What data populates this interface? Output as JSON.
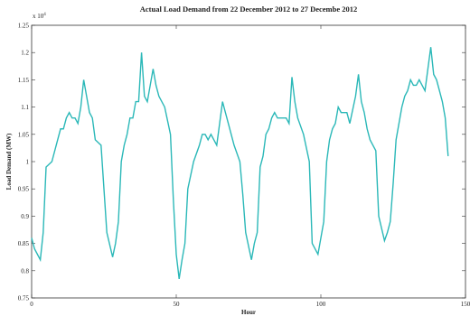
{
  "chart_data": {
    "type": "line",
    "title": "Actual Load Demand from 22 December 2012 to 27 Decembe 2012",
    "x_label": "Hour",
    "y_label": "Load Demand (MW)",
    "y_multiplier": "x 10",
    "y_multiplier_exponent": "4",
    "xlim": [
      0,
      150
    ],
    "xticks": [
      0,
      50,
      100,
      150
    ],
    "ylim": [
      0.75,
      1.25
    ],
    "yticks": [
      0.75,
      0.8,
      0.85,
      0.9,
      0.95,
      1,
      1.05,
      1.1,
      1.15,
      1.2,
      1.25
    ],
    "x": [
      0,
      1,
      3,
      4,
      5,
      7,
      9,
      10,
      11,
      12,
      13,
      14,
      15,
      16,
      17,
      18,
      19,
      20,
      21,
      22,
      24,
      25,
      26,
      28,
      29,
      30,
      31,
      32,
      33,
      34,
      35,
      36,
      37,
      38,
      39,
      40,
      41,
      42,
      43,
      44,
      46,
      48,
      49,
      50,
      51,
      52,
      53,
      54,
      56,
      58,
      59,
      60,
      61,
      62,
      63,
      64,
      65,
      66,
      67,
      68,
      70,
      72,
      73,
      74,
      76,
      77,
      78,
      79,
      80,
      81,
      82,
      83,
      84,
      85,
      86,
      88,
      89,
      90,
      91,
      92,
      94,
      96,
      97,
      99,
      100,
      101,
      102,
      103,
      104,
      105,
      106,
      107,
      108,
      109,
      110,
      112,
      113,
      114,
      115,
      116,
      117,
      119,
      120,
      122,
      123,
      124,
      125,
      126,
      127,
      128,
      129,
      130,
      131,
      132,
      133,
      134,
      135,
      136,
      137,
      138,
      139,
      140,
      141,
      142,
      143,
      144
    ],
    "series": [
      {
        "name": "Load Demand",
        "color": "#2bb8b8",
        "values": [
          0.86,
          0.84,
          0.82,
          0.87,
          0.99,
          1.0,
          1.04,
          1.06,
          1.06,
          1.08,
          1.09,
          1.08,
          1.08,
          1.07,
          1.1,
          1.15,
          1.12,
          1.09,
          1.08,
          1.04,
          1.03,
          0.95,
          0.87,
          0.825,
          0.85,
          0.89,
          1.0,
          1.03,
          1.05,
          1.08,
          1.08,
          1.11,
          1.11,
          1.2,
          1.12,
          1.11,
          1.14,
          1.17,
          1.14,
          1.12,
          1.1,
          1.05,
          0.93,
          0.83,
          0.785,
          0.82,
          0.85,
          0.95,
          1.0,
          1.03,
          1.05,
          1.05,
          1.04,
          1.05,
          1.04,
          1.03,
          1.07,
          1.11,
          1.09,
          1.07,
          1.03,
          1.0,
          0.94,
          0.87,
          0.82,
          0.85,
          0.87,
          0.99,
          1.01,
          1.05,
          1.06,
          1.08,
          1.09,
          1.08,
          1.08,
          1.08,
          1.07,
          1.155,
          1.11,
          1.08,
          1.05,
          1.0,
          0.85,
          0.83,
          0.86,
          0.89,
          1.0,
          1.04,
          1.06,
          1.07,
          1.1,
          1.09,
          1.09,
          1.09,
          1.07,
          1.12,
          1.16,
          1.11,
          1.09,
          1.06,
          1.04,
          1.02,
          0.9,
          0.855,
          0.87,
          0.89,
          0.96,
          1.04,
          1.07,
          1.1,
          1.12,
          1.13,
          1.15,
          1.14,
          1.14,
          1.15,
          1.14,
          1.13,
          1.17,
          1.21,
          1.16,
          1.15,
          1.13,
          1.11,
          1.08,
          1.01
        ]
      }
    ]
  }
}
